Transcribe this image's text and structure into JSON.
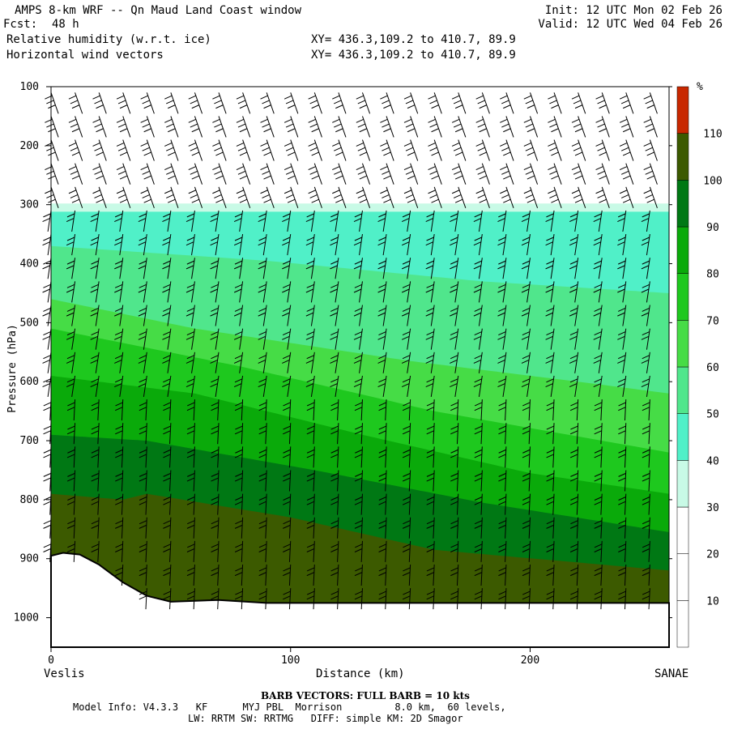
{
  "header": {
    "title": "AMPS 8-km WRF -- Qn Maud Land Coast window",
    "fcst_label": "Fcst:",
    "fcst_value": "48 h",
    "init": "Init: 12 UTC Mon 02 Feb 26",
    "valid": "Valid: 12 UTC Wed 04 Feb 26",
    "field1": "Relative humidity (w.r.t. ice)",
    "field2": "Horizontal wind vectors",
    "xy1": "XY= 436.3,109.2 to 410.7, 89.9",
    "xy2": "XY= 436.3,109.2 to 410.7, 89.9"
  },
  "footer": {
    "barb_note": "BARB VECTORS: FULL BARB = 10 kts",
    "model_info": "Model Info: V4.3.3   KF      MYJ PBL  Morrison         8.0 km,  60 levels,",
    "model_info2": "LW: RRTM SW: RRTMG   DIFF: simple KM: 2D Smagor"
  },
  "colors": {
    "terrain": "#ffffff",
    "rh_0_30": "#ffffff",
    "rh_30_40": "#c8fae6",
    "rh_40_50": "#50f0c8",
    "rh_50_60": "#50e68c",
    "rh_60_70": "#46dc46",
    "rh_70_80": "#1ec81e",
    "rh_80_90": "#0aaa0a",
    "rh_90_100": "#007814",
    "rh_100_110": "#3c5a00",
    "rh_110_plus": "#c82800"
  },
  "chart_data": {
    "type": "cross-section",
    "title": "Relative humidity (w.r.t. ice)",
    "xlabel": "Distance (km)",
    "ylabel": "Pressure (hPa)",
    "x_left_label": "Veslis",
    "x_right_label": "SANAE",
    "xlim": [
      0,
      258
    ],
    "ylim": [
      1050,
      100
    ],
    "xticks": [
      0,
      100,
      200
    ],
    "yticks": [
      100,
      200,
      300,
      400,
      500,
      600,
      700,
      800,
      900,
      1000
    ],
    "colorbar_unit": "%",
    "colorbar_levels": [
      10,
      20,
      30,
      40,
      50,
      60,
      70,
      80,
      90,
      100,
      110
    ],
    "surface_pressure": [
      [
        0,
        895
      ],
      [
        5,
        890
      ],
      [
        12,
        893
      ],
      [
        20,
        910
      ],
      [
        30,
        940
      ],
      [
        40,
        963
      ],
      [
        50,
        973
      ],
      [
        70,
        970
      ],
      [
        90,
        975
      ],
      [
        258,
        975
      ]
    ],
    "contours": [
      {
        "level": 30,
        "top": [
          [
            0,
            298
          ],
          [
            258,
            298
          ]
        ]
      },
      {
        "level": 40,
        "top": [
          [
            0,
            312
          ],
          [
            258,
            312
          ]
        ]
      },
      {
        "level": 50,
        "top": [
          [
            0,
            370
          ],
          [
            90,
            395
          ],
          [
            180,
            430
          ],
          [
            258,
            450
          ]
        ]
      },
      {
        "level": 60,
        "top": [
          [
            0,
            460
          ],
          [
            60,
            510
          ],
          [
            150,
            565
          ],
          [
            220,
            600
          ],
          [
            258,
            620
          ]
        ]
      },
      {
        "level": 70,
        "top": [
          [
            0,
            510
          ],
          [
            80,
            575
          ],
          [
            160,
            650
          ],
          [
            258,
            720
          ]
        ]
      },
      {
        "level": 80,
        "top": [
          [
            0,
            590
          ],
          [
            60,
            620
          ],
          [
            130,
            690
          ],
          [
            200,
            755
          ],
          [
            258,
            790
          ]
        ]
      },
      {
        "level": 90,
        "top": [
          [
            0,
            690
          ],
          [
            40,
            700
          ],
          [
            110,
            750
          ],
          [
            180,
            805
          ],
          [
            258,
            855
          ]
        ]
      },
      {
        "level": 100,
        "top": [
          [
            0,
            790
          ],
          [
            30,
            800
          ],
          [
            40,
            790
          ],
          [
            100,
            830
          ],
          [
            160,
            885
          ],
          [
            258,
            920
          ]
        ]
      }
    ]
  }
}
